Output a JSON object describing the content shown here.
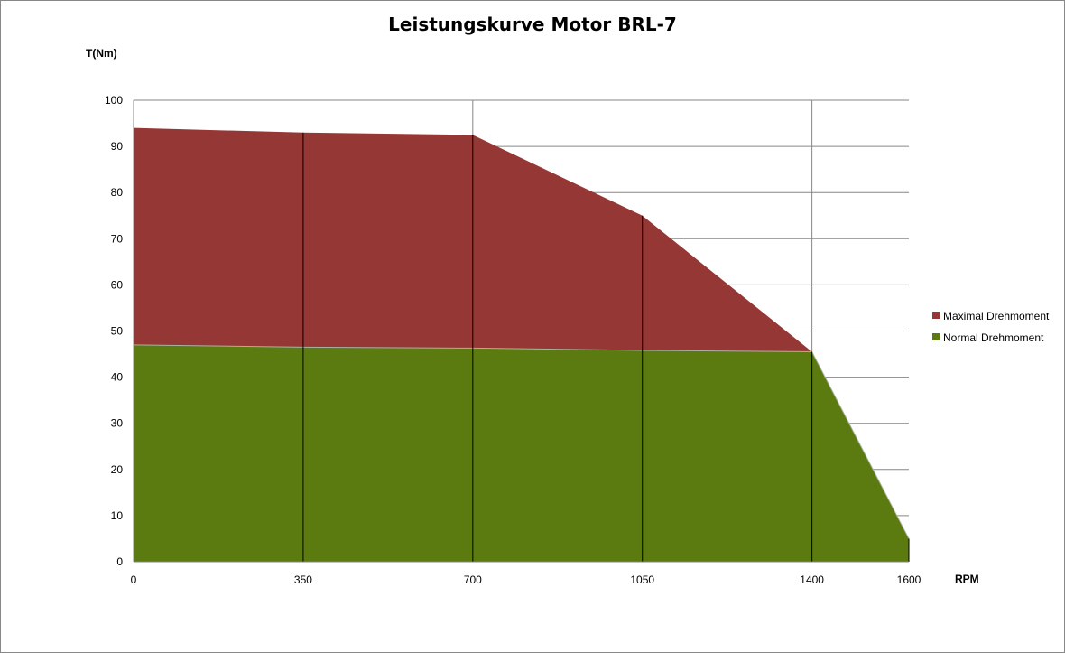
{
  "chart_data": {
    "type": "area",
    "title": "Leistungskurve Motor BRL-7",
    "xlabel": "RPM",
    "ylabel": "T(Nm)",
    "x": [
      0,
      350,
      700,
      1050,
      1400,
      1600
    ],
    "x_tick_labels": [
      "0",
      "350",
      "700",
      "1050",
      "1400",
      "1600"
    ],
    "y_ticks": [
      0,
      10,
      20,
      30,
      40,
      50,
      60,
      70,
      80,
      90,
      100
    ],
    "xlim": [
      0,
      1600
    ],
    "ylim": [
      0,
      100
    ],
    "grid": "horizontal",
    "legend_position": "right",
    "series": [
      {
        "name": "Maximal Drehmoment",
        "color": "#953735",
        "values": [
          94,
          93,
          92.5,
          75,
          45.5,
          5
        ]
      },
      {
        "name": "Normal Drehmoment",
        "color": "#5b7a10",
        "values": [
          47,
          46.5,
          46.3,
          45.8,
          45.5,
          5
        ]
      }
    ],
    "vertical_lines_x": [
      350,
      700,
      1050,
      1400,
      1600
    ]
  }
}
